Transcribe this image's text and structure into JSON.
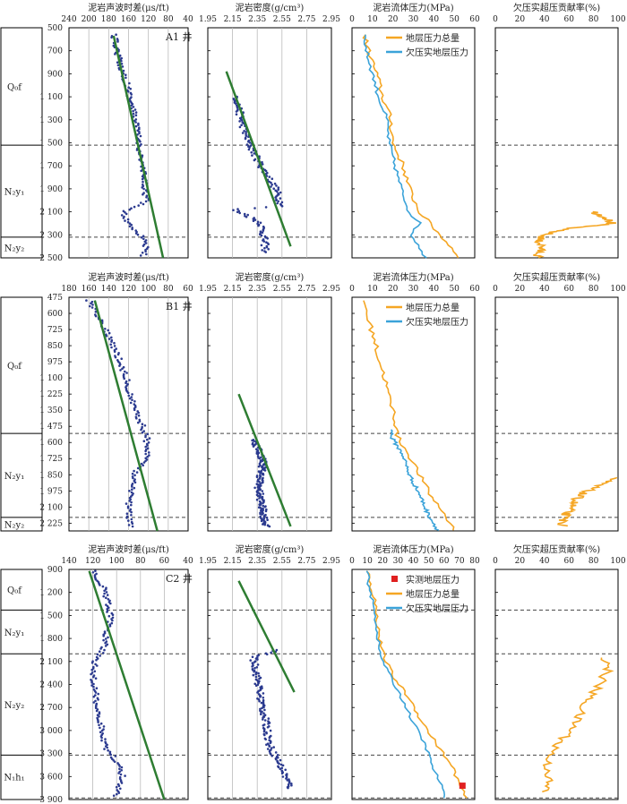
{
  "colors": {
    "acoustic": "#2b3a8f",
    "trend": "#2e7d32",
    "total": "#f5a623",
    "under": "#3ba3d9",
    "measured": "#e02020",
    "dash": "#444444",
    "grid": "#bbbbbb"
  },
  "chart_data": [
    {
      "type": "scatter",
      "well": "A1 井",
      "depth_ticks": [
        "500",
        "700",
        "900",
        "1 100",
        "1 300",
        "1 500",
        "1 700",
        "1 900",
        "2 100",
        "2 300",
        "2 500"
      ],
      "depth_range": [
        500,
        2500
      ],
      "boundaries": [
        1520,
        2320
      ],
      "strata": [
        {
          "label": "Q₀f",
          "from": 500,
          "to": 1520
        },
        {
          "label": "N₂y₁",
          "from": 1520,
          "to": 2320
        },
        {
          "label": "N₂y₂",
          "from": 2320,
          "to": 2500
        }
      ],
      "panels": [
        {
          "title": "泥岩声波时差(μs/ft)",
          "ticks": [
            "240",
            "200",
            "180",
            "160",
            "120",
            "80",
            "40"
          ],
          "xlim": [
            240,
            40
          ]
        },
        {
          "title": "泥岩密度(g/cm³)",
          "ticks": [
            "1.95",
            "2.15",
            "2.35",
            "2.55",
            "2.75",
            "2.95"
          ],
          "xlim": [
            1.95,
            2.95
          ]
        },
        {
          "title": "泥岩流体压力(MPa)",
          "ticks": [
            "0",
            "10",
            "20",
            "30",
            "40",
            "50",
            "60"
          ],
          "xlim": [
            0,
            60
          ]
        },
        {
          "title": "欠压实超压贡献率(%)",
          "ticks": [
            "0",
            "20",
            "40",
            "60",
            "80",
            "100"
          ],
          "xlim": [
            0,
            100
          ]
        }
      ],
      "legend": [
        "地层压力总量",
        "欠压实地层压力"
      ],
      "acoustic": {
        "depth": [
          560,
          800,
          1000,
          1200,
          1400,
          1600,
          1800,
          2000,
          2060,
          2100,
          2200,
          2350,
          2480
        ],
        "value": [
          165,
          155,
          142,
          133,
          125,
          120,
          115,
          110,
          128,
          150,
          140,
          110,
          115
        ]
      },
      "acoustic_trend": {
        "depth": [
          570,
          2500
        ],
        "value": [
          165,
          82
        ]
      },
      "density": {
        "depth": [
          1100,
          1300,
          1500,
          1700,
          1900,
          2050,
          2080,
          2120,
          2200,
          2300,
          2450
        ],
        "value": [
          2.18,
          2.22,
          2.28,
          2.38,
          2.5,
          2.55,
          2.15,
          2.25,
          2.38,
          2.4,
          2.42
        ]
      },
      "density_trend": {
        "depth": [
          880,
          2400
        ],
        "value": [
          2.1,
          2.62
        ]
      },
      "total_pressure": {
        "depth": [
          560,
          700,
          900,
          1100,
          1300,
          1500,
          1700,
          1900,
          2100,
          2200,
          2300,
          2400,
          2500
        ],
        "value": [
          6,
          8,
          12,
          15,
          19,
          20,
          25,
          28,
          33,
          38,
          43,
          48,
          53
        ]
      },
      "under_pressure": {
        "depth": [
          560,
          700,
          900,
          1100,
          1300,
          1500,
          1700,
          1900,
          2100,
          2200,
          2300,
          2400,
          2500
        ],
        "value": [
          6,
          7,
          10,
          13,
          17,
          18,
          21,
          24,
          28,
          33,
          29,
          33,
          36
        ]
      },
      "contribution": {
        "depth": [
          2100,
          2150,
          2200,
          2250,
          2300,
          2350,
          2400,
          2450,
          2500
        ],
        "value": [
          80,
          90,
          95,
          55,
          40,
          35,
          38,
          36,
          34
        ]
      }
    },
    {
      "type": "scatter",
      "well": "B1 井",
      "depth_ticks": [
        "475",
        "600",
        "725",
        "850",
        "975",
        "1 100",
        "1 225",
        "1 350",
        "1 475",
        "1 600",
        "1 725",
        "1 850",
        "1 975",
        "2 100",
        "2 225"
      ],
      "depth_range": [
        475,
        2285
      ],
      "boundaries": [
        1530,
        2180
      ],
      "strata": [
        {
          "label": "Q₀f",
          "from": 475,
          "to": 1530
        },
        {
          "label": "N₂y₁",
          "from": 1530,
          "to": 2180
        },
        {
          "label": "N₂y₂",
          "from": 2180,
          "to": 2285
        }
      ],
      "panels": [
        {
          "title": "泥岩声波时差(μs/ft)",
          "ticks": [
            "180",
            "160",
            "140",
            "120",
            "100",
            "80",
            "60"
          ],
          "xlim": [
            180,
            60
          ]
        },
        {
          "title": "泥岩密度(g/cm³)",
          "ticks": [
            "1.95",
            "2.15",
            "2.35",
            "2.55",
            "2.75",
            "2.95"
          ],
          "xlim": [
            1.95,
            2.95
          ]
        },
        {
          "title": "泥岩流体压力(MPa)",
          "ticks": [
            "0",
            "10",
            "20",
            "30",
            "40",
            "50",
            "60"
          ],
          "xlim": [
            0,
            60
          ]
        },
        {
          "title": "欠压实超压贡献率(%)",
          "ticks": [
            "0",
            "20",
            "40",
            "60",
            "80",
            "100"
          ],
          "xlim": [
            0,
            100
          ]
        }
      ],
      "legend": [
        "地层压力总量",
        "欠压实地层压力"
      ],
      "acoustic": {
        "depth": [
          500,
          650,
          800,
          950,
          1100,
          1250,
          1400,
          1550,
          1700,
          1850,
          2000,
          2100,
          2250
        ],
        "value": [
          160,
          148,
          138,
          130,
          122,
          118,
          110,
          102,
          100,
          115,
          118,
          120,
          118
        ]
      },
      "acoustic_trend": {
        "depth": [
          500,
          2285
        ],
        "value": [
          154,
          91
        ]
      },
      "density": {
        "depth": [
          1580,
          1650,
          1750,
          1850,
          1950,
          2050,
          2150,
          2250
        ],
        "value": [
          2.32,
          2.36,
          2.4,
          2.38,
          2.36,
          2.38,
          2.4,
          2.42
        ]
      },
      "density_trend": {
        "depth": [
          1225,
          2250
        ],
        "value": [
          2.2,
          2.62
        ]
      },
      "total_pressure": {
        "depth": [
          500,
          650,
          800,
          950,
          1100,
          1250,
          1400,
          1550,
          1700,
          1850,
          2000,
          2150,
          2280
        ],
        "value": [
          6,
          8,
          11,
          13,
          16,
          18,
          21,
          22,
          28,
          33,
          38,
          45,
          50
        ]
      },
      "under_pressure": {
        "depth": [
          1500,
          1550,
          1700,
          1850,
          2000,
          2150,
          2280
        ],
        "value": [
          20,
          19,
          25,
          28,
          33,
          37,
          42
        ]
      },
      "contribution": {
        "depth": [
          1870,
          1900,
          1950,
          2000,
          2050,
          2100,
          2150,
          2200,
          2250
        ],
        "value": [
          100,
          90,
          80,
          70,
          65,
          62,
          58,
          55,
          55
        ]
      }
    },
    {
      "type": "scatter",
      "well": "C2 井",
      "depth_ticks": [
        "900",
        "1 200",
        "1 500",
        "1 800",
        "2 100",
        "2 400",
        "2 700",
        "3 000",
        "3 300",
        "3 600",
        "3 900"
      ],
      "depth_range": [
        900,
        3900
      ],
      "boundaries": [
        1430,
        2000,
        3320,
        3880
      ],
      "strata": [
        {
          "label": "Q₀f",
          "from": 900,
          "to": 1430
        },
        {
          "label": "N₂y₁",
          "from": 1430,
          "to": 2000
        },
        {
          "label": "N₂y₂",
          "from": 2000,
          "to": 3320
        },
        {
          "label": "N₁h₁",
          "from": 3320,
          "to": 3880
        }
      ],
      "panels": [
        {
          "title": "泥岩声波时差(μs/ft)",
          "ticks": [
            "140",
            "120",
            "100",
            "80",
            "60",
            "40"
          ],
          "xlim": [
            140,
            40
          ]
        },
        {
          "title": "泥岩密度(g/cm³)",
          "ticks": [
            "1.95",
            "2.15",
            "2.35",
            "2.55",
            "2.75",
            "2.95"
          ],
          "xlim": [
            1.95,
            2.95
          ]
        },
        {
          "title": "泥岩流体压力(MPa)",
          "ticks": [
            "0",
            "10",
            "20",
            "30",
            "40",
            "50",
            "60",
            "70",
            "80"
          ],
          "xlim": [
            0,
            80
          ]
        },
        {
          "title": "欠压实超压贡献率(%)",
          "ticks": [
            "0",
            "20",
            "40",
            "60",
            "80",
            "100"
          ],
          "xlim": [
            0,
            100
          ]
        }
      ],
      "legend": [
        "实测地层压力",
        "地层压力总量",
        "欠压实地层压力"
      ],
      "acoustic": {
        "depth": [
          920,
          1100,
          1300,
          1500,
          1700,
          1900,
          2100,
          2300,
          2500,
          2800,
          3000,
          3200,
          3400,
          3600,
          3850
        ],
        "value": [
          120,
          112,
          108,
          105,
          108,
          110,
          118,
          120,
          118,
          115,
          112,
          110,
          100,
          95,
          100
        ]
      },
      "acoustic_trend": {
        "depth": [
          920,
          3900
        ],
        "value": [
          123,
          60
        ]
      },
      "density": {
        "depth": [
          1950,
          2050,
          2300,
          2600,
          2900,
          3200,
          3400,
          3600,
          3750
        ],
        "value": [
          2.52,
          2.32,
          2.35,
          2.38,
          2.42,
          2.45,
          2.52,
          2.58,
          2.62
        ]
      },
      "density_trend": {
        "depth": [
          1050,
          2500
        ],
        "value": [
          2.2,
          2.65
        ]
      },
      "total_pressure": {
        "depth": [
          920,
          1100,
          1300,
          1500,
          1800,
          2000,
          2300,
          2600,
          2900,
          3200,
          3500,
          3700,
          3880
        ],
        "value": [
          10,
          12,
          15,
          16,
          18,
          20,
          27,
          38,
          46,
          56,
          66,
          70,
          74
        ]
      },
      "under_pressure": {
        "depth": [
          920,
          1100,
          1300,
          1500,
          1800,
          2000,
          2300,
          2600,
          2900,
          3200,
          3500,
          3700,
          3880
        ],
        "value": [
          10,
          11,
          13,
          15,
          17,
          18,
          25,
          33,
          40,
          48,
          53,
          58,
          60
        ]
      },
      "measured": {
        "depth": [
          3720
        ],
        "value": [
          72
        ]
      },
      "contribution": {
        "depth": [
          2050,
          2200,
          2400,
          2600,
          2800,
          3000,
          3200,
          3400,
          3600,
          3800
        ],
        "value": [
          90,
          92,
          85,
          75,
          68,
          62,
          50,
          42,
          44,
          40
        ]
      }
    }
  ]
}
